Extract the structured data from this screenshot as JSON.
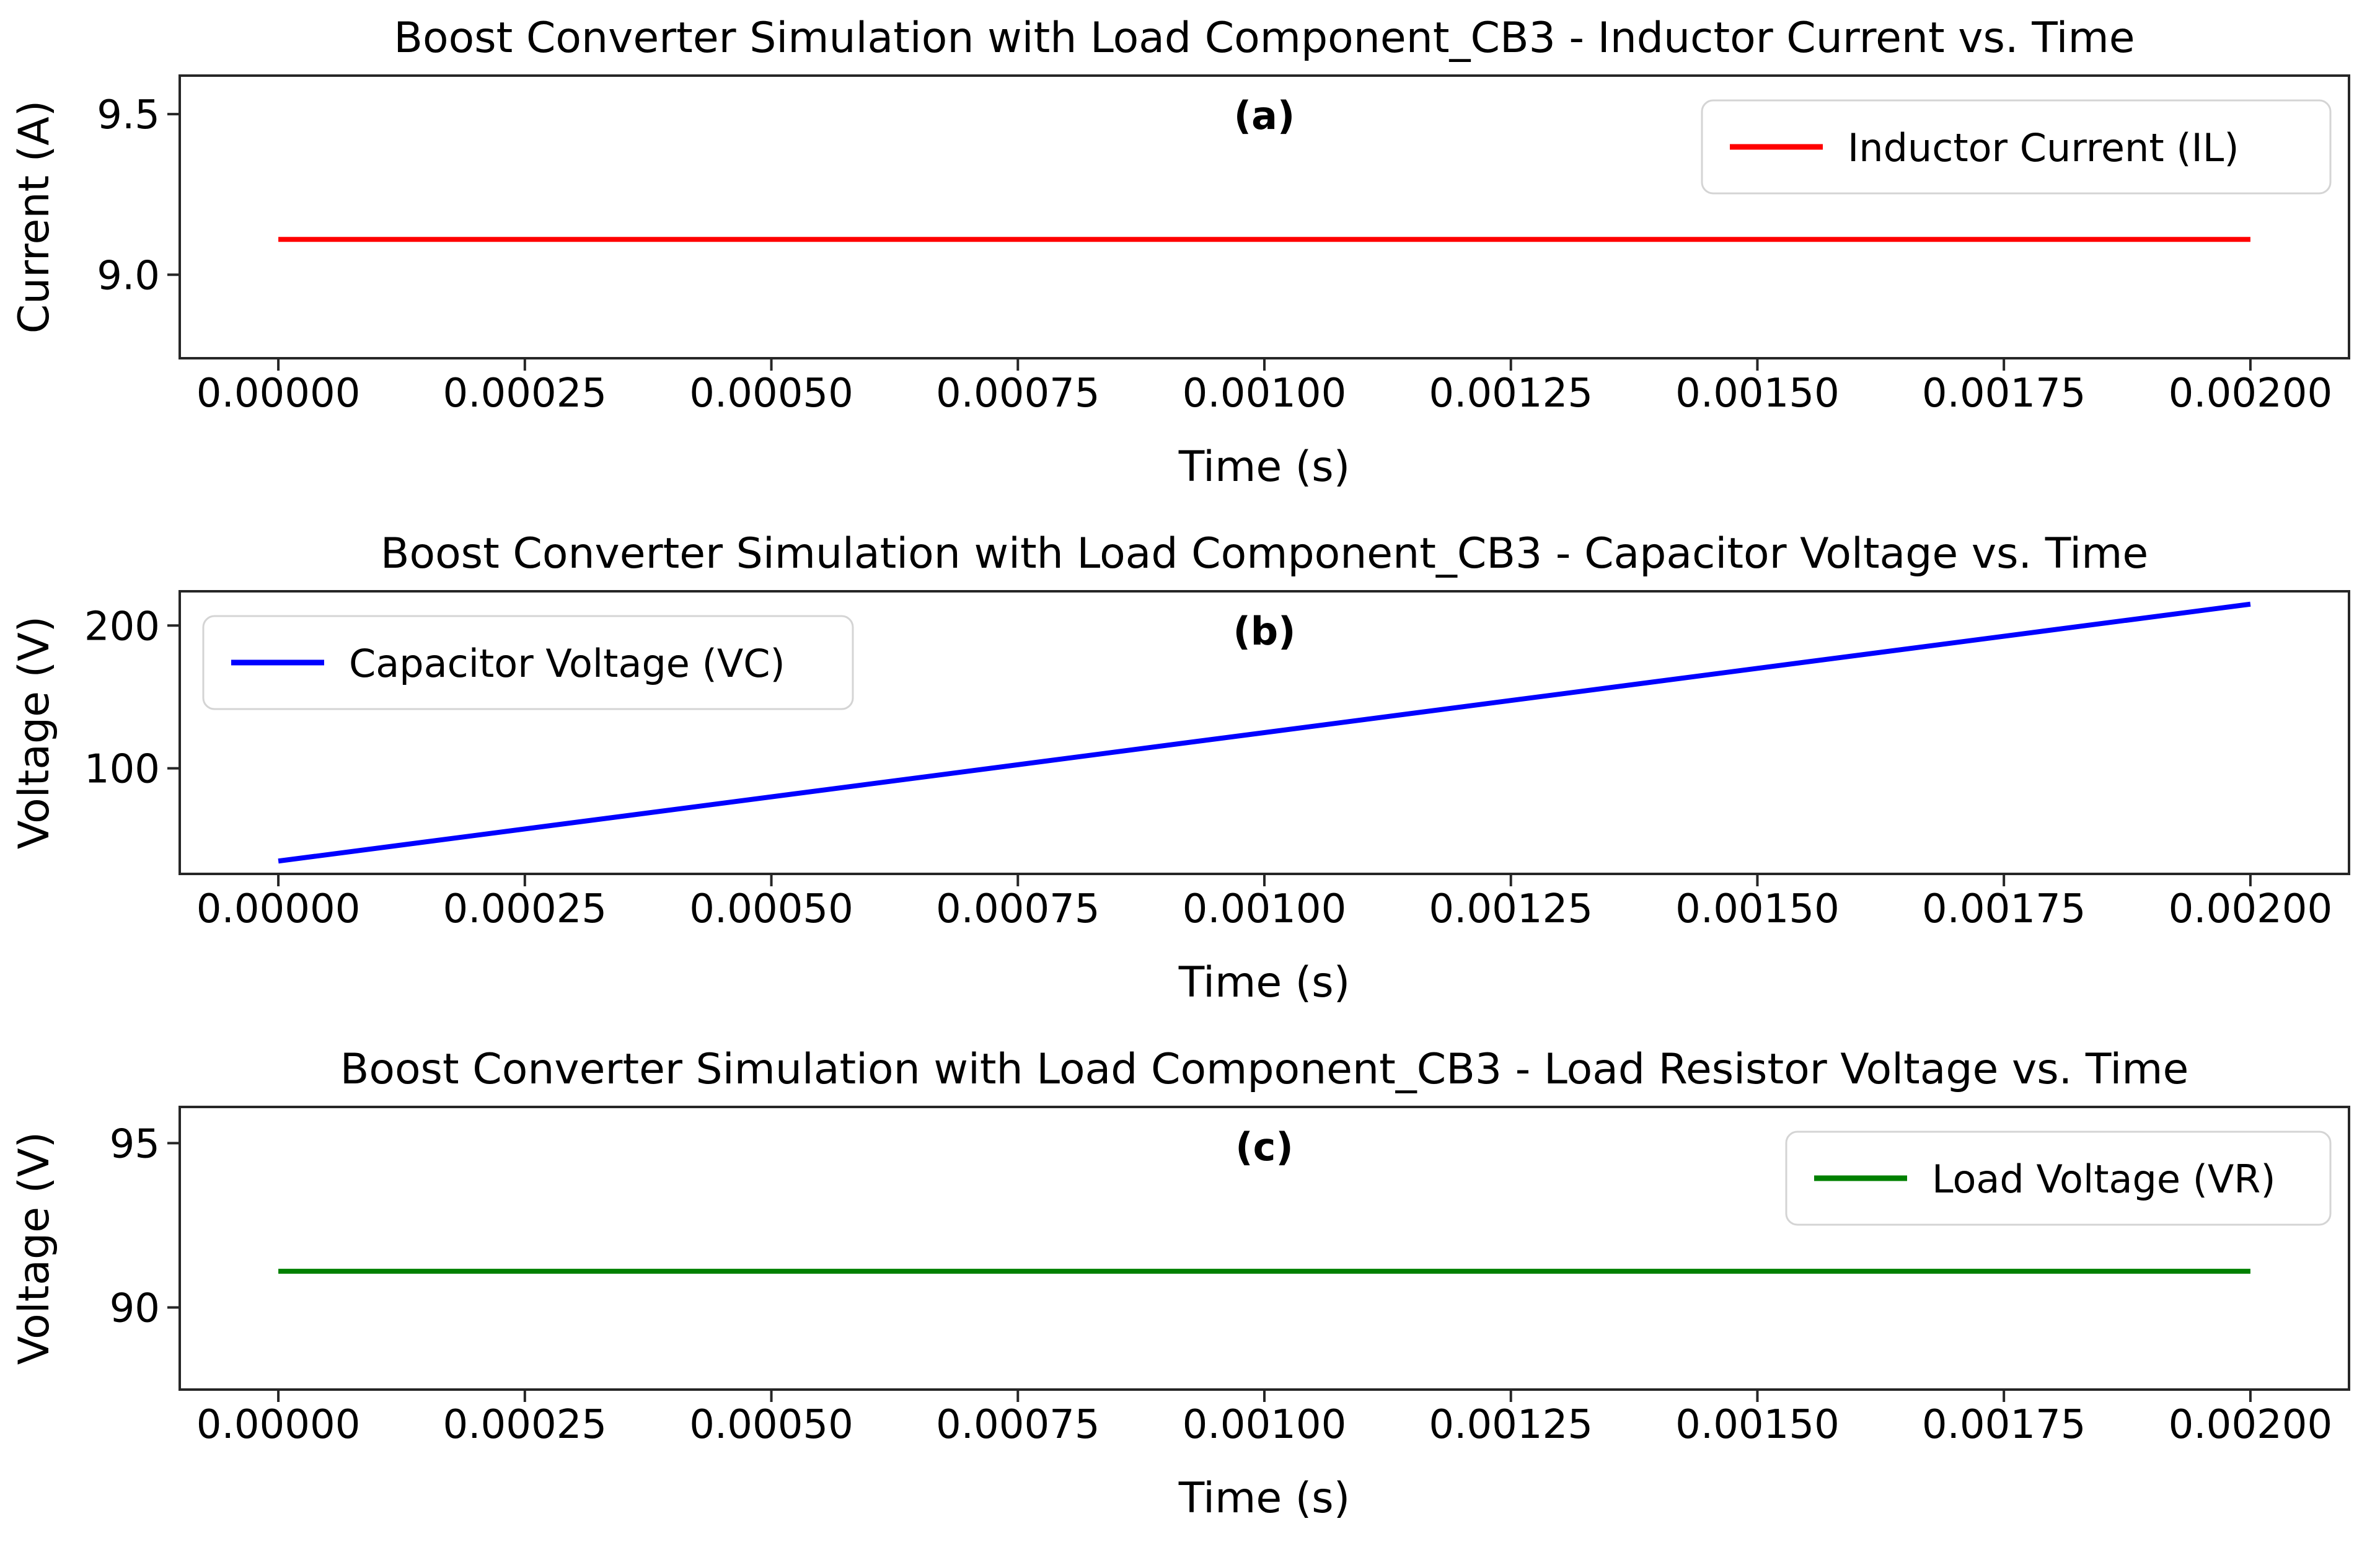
{
  "figure": {
    "background": "#ffffff",
    "description": "Three stacked line subplots from a boost converter simulation"
  },
  "chart_data": [
    {
      "type": "line",
      "title": "Boost Converter Simulation with Load Component_CB3 - Inductor Current vs. Time",
      "subplot_label": "(a)",
      "xlabel": "Time (s)",
      "ylabel": "Current (A)",
      "xlim": [
        -0.0001,
        0.0021
      ],
      "ylim": [
        8.74,
        9.62
      ],
      "grid": false,
      "xticks": [
        {
          "v": 0.0,
          "label": "0.00000"
        },
        {
          "v": 0.00025,
          "label": "0.00025"
        },
        {
          "v": 0.0005,
          "label": "0.00050"
        },
        {
          "v": 0.00075,
          "label": "0.00075"
        },
        {
          "v": 0.001,
          "label": "0.00100"
        },
        {
          "v": 0.00125,
          "label": "0.00125"
        },
        {
          "v": 0.0015,
          "label": "0.00150"
        },
        {
          "v": 0.00175,
          "label": "0.00175"
        },
        {
          "v": 0.002,
          "label": "0.00200"
        }
      ],
      "yticks": [
        {
          "v": 9.0,
          "label": "9.0"
        },
        {
          "v": 9.5,
          "label": "9.5"
        }
      ],
      "series": [
        {
          "name": "Inductor Current (IL)",
          "color": "#ff0000",
          "x": [
            0.0,
            0.002
          ],
          "y": [
            9.11,
            9.11
          ]
        }
      ],
      "legend": {
        "position": "top-right"
      }
    },
    {
      "type": "line",
      "title": "Boost Converter Simulation with Load Component_CB3 - Capacitor Voltage vs. Time",
      "subplot_label": "(b)",
      "xlabel": "Time (s)",
      "ylabel": "Voltage (V)",
      "xlim": [
        -0.0001,
        0.0021
      ],
      "ylim": [
        26,
        224
      ],
      "grid": false,
      "xticks": [
        {
          "v": 0.0,
          "label": "0.00000"
        },
        {
          "v": 0.00025,
          "label": "0.00025"
        },
        {
          "v": 0.0005,
          "label": "0.00050"
        },
        {
          "v": 0.00075,
          "label": "0.00075"
        },
        {
          "v": 0.001,
          "label": "0.00100"
        },
        {
          "v": 0.00125,
          "label": "0.00125"
        },
        {
          "v": 0.0015,
          "label": "0.00150"
        },
        {
          "v": 0.00175,
          "label": "0.00175"
        },
        {
          "v": 0.002,
          "label": "0.00200"
        }
      ],
      "yticks": [
        {
          "v": 100,
          "label": "100"
        },
        {
          "v": 200,
          "label": "200"
        }
      ],
      "series": [
        {
          "name": "Capacitor Voltage (VC)",
          "color": "#0000ff",
          "x": [
            0.0,
            0.002
          ],
          "y": [
            35,
            215
          ]
        }
      ],
      "legend": {
        "position": "top-left"
      }
    },
    {
      "type": "line",
      "title": "Boost Converter Simulation with Load Component_CB3 - Load Resistor Voltage vs. Time",
      "subplot_label": "(c)",
      "xlabel": "Time (s)",
      "ylabel": "Voltage (V)",
      "xlim": [
        -0.0001,
        0.0021
      ],
      "ylim": [
        87.5,
        96.1
      ],
      "grid": false,
      "xticks": [
        {
          "v": 0.0,
          "label": "0.00000"
        },
        {
          "v": 0.00025,
          "label": "0.00025"
        },
        {
          "v": 0.0005,
          "label": "0.00050"
        },
        {
          "v": 0.00075,
          "label": "0.00075"
        },
        {
          "v": 0.001,
          "label": "0.00100"
        },
        {
          "v": 0.00125,
          "label": "0.00125"
        },
        {
          "v": 0.0015,
          "label": "0.00150"
        },
        {
          "v": 0.00175,
          "label": "0.00175"
        },
        {
          "v": 0.002,
          "label": "0.00200"
        }
      ],
      "yticks": [
        {
          "v": 90,
          "label": "90"
        },
        {
          "v": 95,
          "label": "95"
        }
      ],
      "series": [
        {
          "name": "Load Voltage (VR)",
          "color": "#008000",
          "x": [
            0.0,
            0.002
          ],
          "y": [
            91.1,
            91.1
          ]
        }
      ],
      "legend": {
        "position": "top-right"
      }
    }
  ]
}
